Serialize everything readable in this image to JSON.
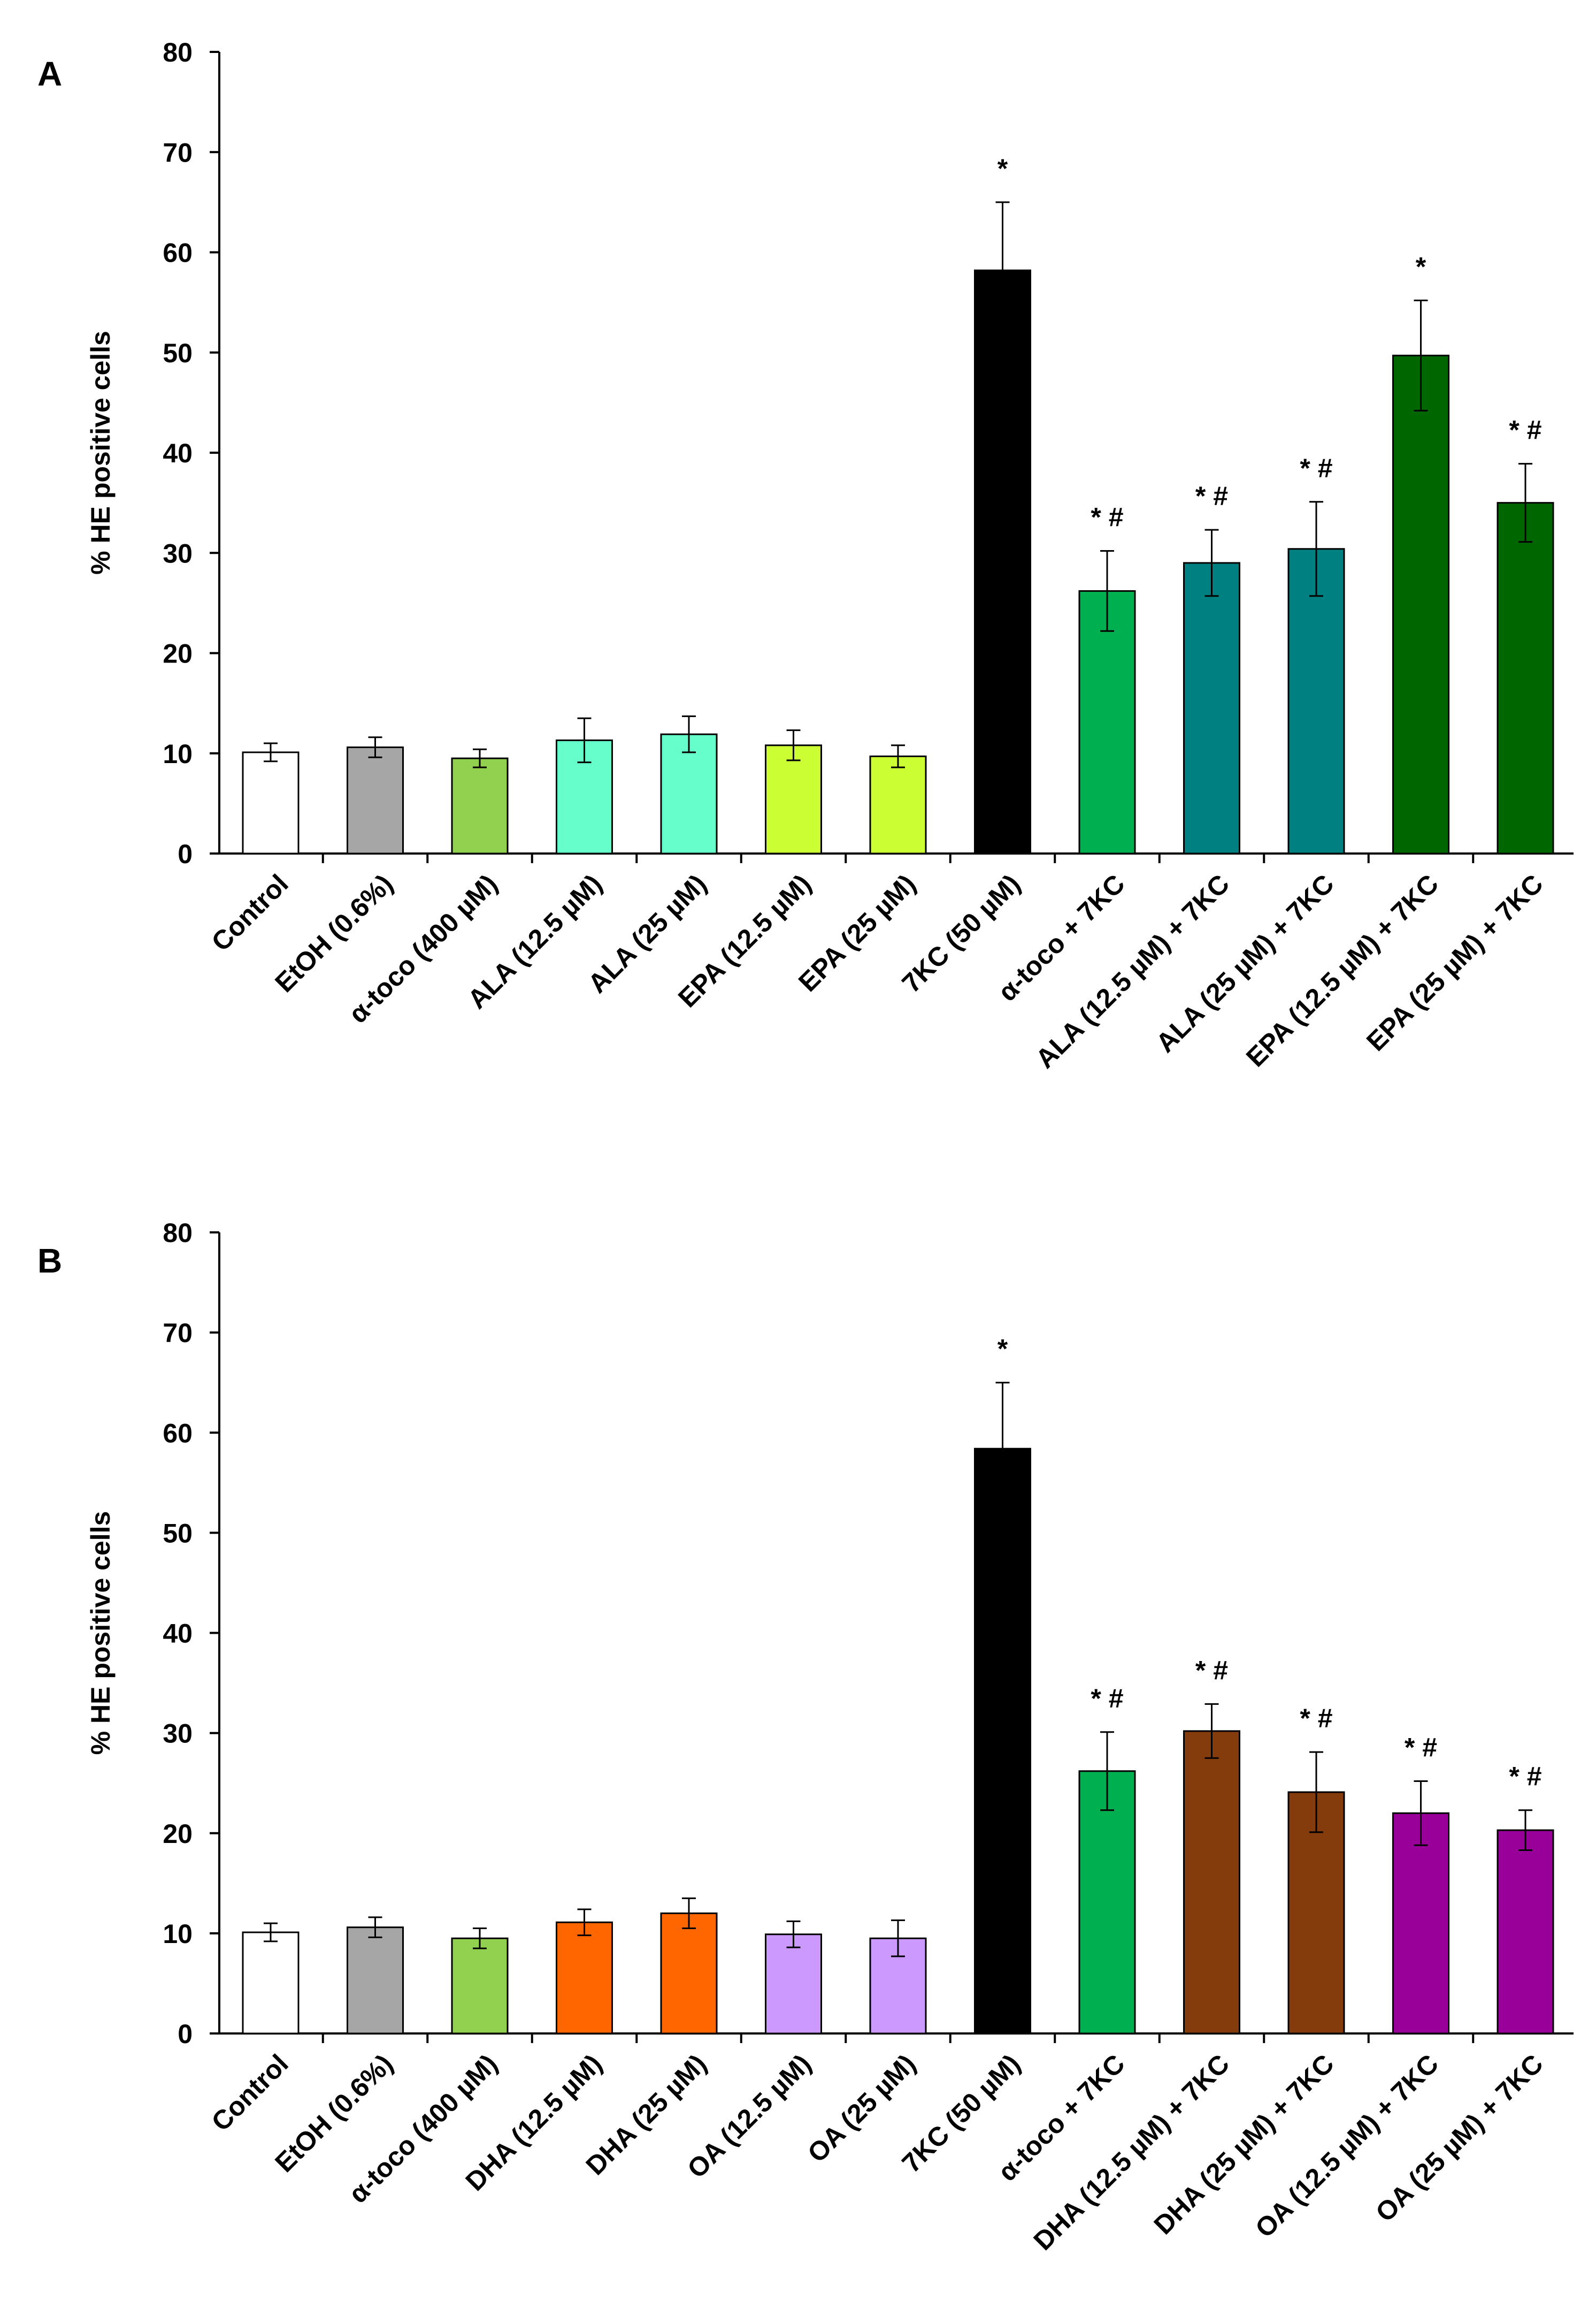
{
  "chart_data": [
    {
      "panel": "A",
      "type": "bar",
      "ylabel": "% HE positive cells",
      "ylim": [
        0,
        80
      ],
      "yticks": [
        "0",
        "10",
        "20",
        "30",
        "40",
        "50",
        "60",
        "70",
        "80"
      ],
      "categories": [
        "Control",
        "EtOH (0.6%)",
        "α-toco (400 µM)",
        "ALA (12.5 µM)",
        "ALA (25 µM)",
        "EPA (12.5 µM)",
        "EPA (25 µM)",
        "7KC (50 µM)",
        "α-toco + 7KC",
        "ALA (12.5 µM) + 7KC",
        "ALA (25 µM) + 7KC",
        "EPA (12.5 µM) + 7KC",
        "EPA (25 µM) + 7KC"
      ],
      "values": [
        10.1,
        10.6,
        9.5,
        11.3,
        11.9,
        10.8,
        9.7,
        58.2,
        26.2,
        29.0,
        30.4,
        49.7,
        35.0
      ],
      "errors": [
        0.9,
        1.0,
        0.9,
        2.2,
        1.8,
        1.5,
        1.1,
        6.8,
        4.0,
        3.3,
        4.7,
        5.5,
        3.9
      ],
      "colors": [
        "#ffffff",
        "#a6a6a6",
        "#92d050",
        "#66ffcc",
        "#66ffcc",
        "#ccff33",
        "#ccff33",
        "#000000",
        "#00b050",
        "#008080",
        "#008080",
        "#006600",
        "#006600"
      ],
      "annotations": [
        "",
        "",
        "",
        "",
        "",
        "",
        "",
        "*",
        "* #",
        "* #",
        "* #",
        "*",
        "* #"
      ]
    },
    {
      "panel": "B",
      "type": "bar",
      "ylabel": "% HE positive cells",
      "ylim": [
        0,
        80
      ],
      "yticks": [
        "0",
        "10",
        "20",
        "30",
        "40",
        "50",
        "60",
        "70",
        "80"
      ],
      "categories": [
        "Control",
        "EtOH (0.6%)",
        "α-toco (400 µM)",
        "DHA (12.5 µM)",
        "DHA (25 µM)",
        "OA (12.5 µM)",
        "OA (25 µM)",
        "7KC (50 µM)",
        "α-toco + 7KC",
        "DHA (12.5 µM) + 7KC",
        "DHA (25 µM) + 7KC",
        "OA (12.5 µM) + 7KC",
        "OA (25 µM) + 7KC"
      ],
      "values": [
        10.1,
        10.6,
        9.5,
        11.1,
        12.0,
        9.9,
        9.5,
        58.4,
        26.2,
        30.2,
        24.1,
        22.0,
        20.3
      ],
      "errors": [
        0.9,
        1.0,
        1.0,
        1.3,
        1.5,
        1.3,
        1.8,
        6.6,
        3.9,
        2.7,
        4.0,
        3.2,
        2.0
      ],
      "colors": [
        "#ffffff",
        "#a6a6a6",
        "#92d050",
        "#ff6600",
        "#ff6600",
        "#cc99ff",
        "#cc99ff",
        "#000000",
        "#00b050",
        "#843c0c",
        "#843c0c",
        "#990099",
        "#990099"
      ],
      "annotations": [
        "",
        "",
        "",
        "",
        "",
        "",
        "",
        "*",
        "* #",
        "* #",
        "* #",
        "* #",
        "* #"
      ]
    }
  ]
}
